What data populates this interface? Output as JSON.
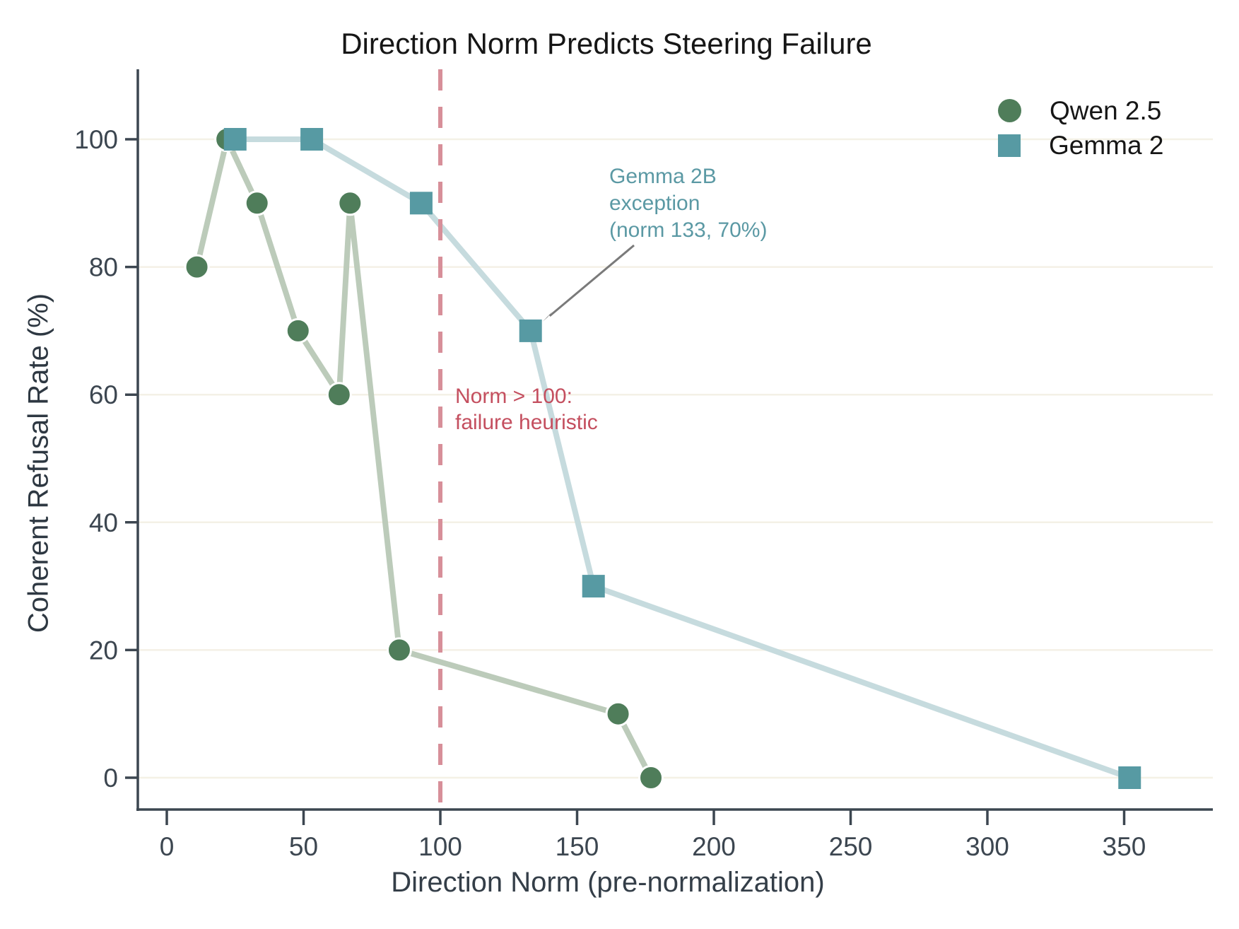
{
  "chart_data": {
    "type": "line",
    "title": "Direction Norm Predicts Steering Failure",
    "xlabel": "Direction Norm (pre-normalization)",
    "ylabel": "Coherent Refusal Rate (%)",
    "x_ticks": [
      0,
      50,
      100,
      150,
      200,
      250,
      300,
      350
    ],
    "y_ticks": [
      0,
      20,
      40,
      60,
      80,
      100
    ],
    "xlim": [
      -11,
      383
    ],
    "ylim": [
      -5,
      110
    ],
    "grid": "horizontal",
    "legend_position": "upper-right",
    "series": [
      {
        "name": "Qwen 2.5",
        "marker": "circle",
        "marker_color": "#4f7d5a",
        "line_color": "#bccbba",
        "points": [
          [
            11,
            80
          ],
          [
            22,
            100
          ],
          [
            33,
            90
          ],
          [
            48,
            70
          ],
          [
            63,
            60
          ],
          [
            67,
            90
          ],
          [
            85,
            20
          ],
          [
            165,
            10
          ],
          [
            177,
            0
          ]
        ]
      },
      {
        "name": "Gemma 2",
        "marker": "square",
        "marker_color": "#579aa3",
        "line_color": "#c6dbde",
        "points": [
          [
            25,
            100
          ],
          [
            53,
            100
          ],
          [
            93,
            90
          ],
          [
            133,
            70
          ],
          [
            156,
            30
          ],
          [
            352,
            0
          ]
        ]
      }
    ],
    "reference_line": {
      "x": 100,
      "style": "dashed",
      "color": "#d78f99",
      "label_lines": [
        "Norm > 100:",
        "failure heuristic"
      ],
      "label_color": "#c44f5f"
    },
    "annotation": {
      "lines": [
        "Gemma 2B",
        "exception",
        "(norm 133, 70%)"
      ],
      "color": "#5b99a4",
      "target_point": [
        133,
        70
      ],
      "arrow_color": "#7a7a7a"
    },
    "axis_color": "#3c4650",
    "grid_color": "#f4f1e6",
    "background_color": "#ffffff"
  }
}
